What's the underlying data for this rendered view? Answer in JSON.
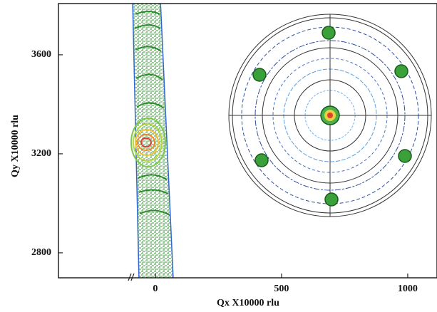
{
  "chart_data": {
    "type": "contour",
    "xlabel": "Qx X10000 rlu",
    "ylabel": "Qy X10000 rlu",
    "xlim": [
      -384,
      1116
    ],
    "ylim": [
      2699,
      3807
    ],
    "xticks": [
      0,
      500,
      1000
    ],
    "yticks": [
      2800,
      3200,
      3600
    ]
  }
}
